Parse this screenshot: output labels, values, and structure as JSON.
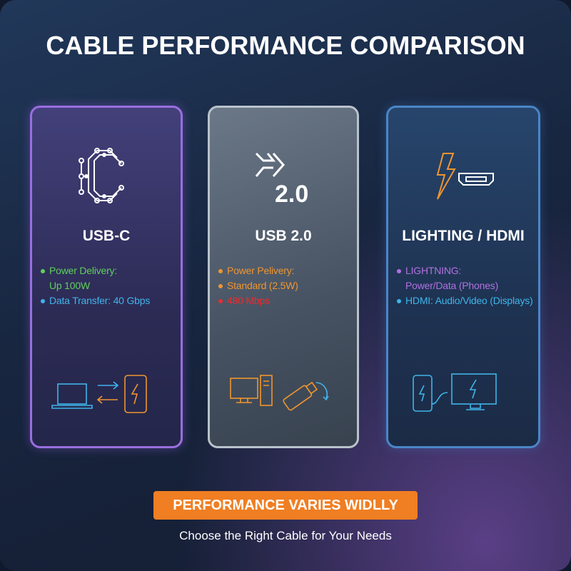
{
  "title": "CABLE PERFORMANCE COMPARISON",
  "cards": [
    {
      "name": "USB-C",
      "icon": "circuit-c-icon",
      "items": [
        {
          "text": "Power Delivery:",
          "color": "#5fd05a"
        },
        {
          "text": "Up 100W",
          "color": "#5fd05a"
        },
        {
          "text": "Data Transfer: 40 Gbps",
          "color": "#3fb4ea"
        }
      ],
      "illustration": "laptop-phone-transfer-icon"
    },
    {
      "name": "USB 2.0",
      "icon": "usb-2-icon",
      "icon_text": "2.0",
      "items": [
        {
          "text": "Power Pelivery:",
          "color": "#f0952e"
        },
        {
          "text": "Standard (2.5W)",
          "color": "#f0952e"
        },
        {
          "text": "480 Mbps",
          "color": "#ee2a2a"
        }
      ],
      "illustration": "desktop-usb-drive-icon"
    },
    {
      "name": "LIGHTING / HDMI",
      "icon": "lightning-hdmi-icon",
      "items": [
        {
          "text": "LIGHTNING:",
          "color": "#b170e0"
        },
        {
          "text": "Power/Data (Phones)",
          "color": "#b170e0"
        },
        {
          "text": "HDMI: Audio/Video (Displays)",
          "color": "#3fb4ea"
        }
      ],
      "illustration": "phone-monitor-icon"
    }
  ],
  "banner": "PERFORMANCE VARIES WIDLLY",
  "subtitle": "Choose the Right Cable for Your Needs",
  "colors": {
    "accent": "#f07e22",
    "usbc_border": "#9a6ee0",
    "usb2_border": "#b9c2cc",
    "hdmi_border": "#4a86c8"
  }
}
